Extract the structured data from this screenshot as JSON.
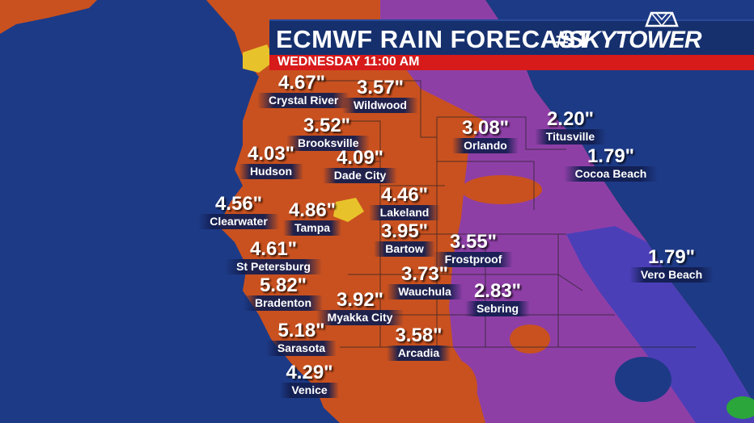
{
  "header": {
    "title": "ECMWF RAIN FORECAST",
    "brand": "#SKYTOWER",
    "subtitle": "WEDNESDAY  11:00 AM"
  },
  "colors": {
    "ocean": "#1d3a86",
    "heavy_rain": "#c9511f",
    "moderate_rain": "#8e3fa6",
    "light_rain": "#5a3fb0",
    "peak_rain": "#e8c22a",
    "banner": "#16306e",
    "subbar": "#d71a1a"
  },
  "locations": [
    {
      "amount": "4.67\"",
      "name": "Crystal River"
    },
    {
      "amount": "3.57\"",
      "name": "Wildwood"
    },
    {
      "amount": "3.52\"",
      "name": "Brooksville"
    },
    {
      "amount": "4.03\"",
      "name": "Hudson"
    },
    {
      "amount": "4.09\"",
      "name": "Dade City"
    },
    {
      "amount": "3.08\"",
      "name": "Orlando"
    },
    {
      "amount": "2.20\"",
      "name": "Titusville"
    },
    {
      "amount": "1.79\"",
      "name": "Cocoa Beach"
    },
    {
      "amount": "4.56\"",
      "name": "Clearwater"
    },
    {
      "amount": "4.86\"",
      "name": "Tampa"
    },
    {
      "amount": "4.46\"",
      "name": "Lakeland"
    },
    {
      "amount": "3.95\"",
      "name": "Bartow"
    },
    {
      "amount": "3.55\"",
      "name": "Frostproof"
    },
    {
      "amount": "1.79\"",
      "name": "Vero Beach"
    },
    {
      "amount": "4.61\"",
      "name": "St Petersburg"
    },
    {
      "amount": "3.73\"",
      "name": "Wauchula"
    },
    {
      "amount": "5.82\"",
      "name": "Bradenton"
    },
    {
      "amount": "3.92\"",
      "name": "Myakka City"
    },
    {
      "amount": "2.83\"",
      "name": "Sebring"
    },
    {
      "amount": "5.18\"",
      "name": "Sarasota"
    },
    {
      "amount": "3.58\"",
      "name": "Arcadia"
    },
    {
      "amount": "4.29\"",
      "name": "Venice"
    }
  ]
}
